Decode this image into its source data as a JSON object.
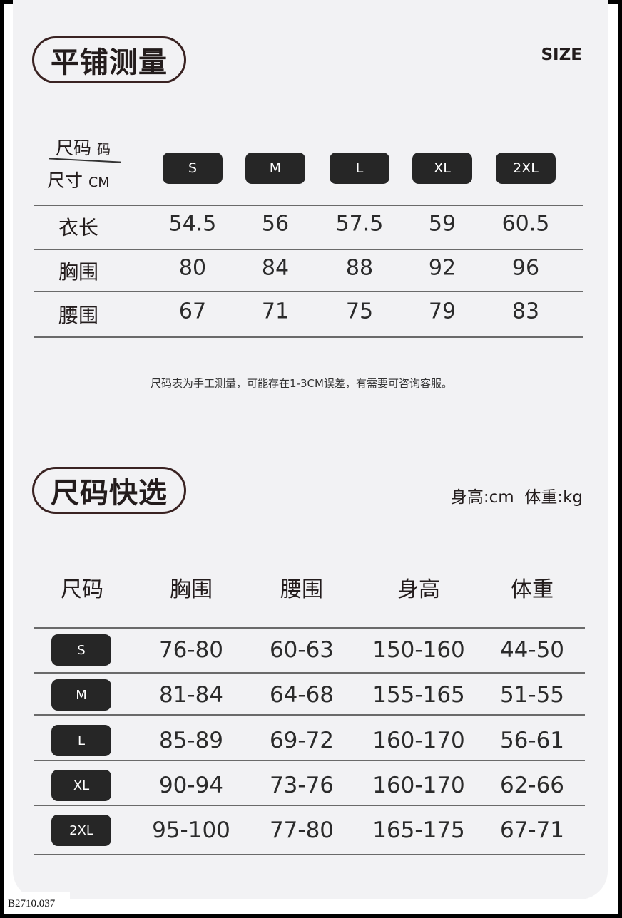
{
  "section1": {
    "title": "平铺测量",
    "size_label": "SIZE",
    "corner": {
      "top": "尺码",
      "top_unit": "码",
      "bottom": "尺寸",
      "bottom_unit": "CM"
    },
    "sizes": [
      "S",
      "M",
      "L",
      "XL",
      "2XL"
    ],
    "rows": [
      {
        "label": "衣长",
        "values": [
          "54.5",
          "56",
          "57.5",
          "59",
          "60.5"
        ]
      },
      {
        "label": "胸围",
        "values": [
          "80",
          "84",
          "88",
          "92",
          "96"
        ]
      },
      {
        "label": "腰围",
        "values": [
          "67",
          "71",
          "75",
          "79",
          "83"
        ]
      }
    ],
    "note": "尺码表为手工测量，可能存在1-3CM误差，有需要可咨询客服。"
  },
  "section2": {
    "title": "尺码快选",
    "units": "身高:cm  体重:kg",
    "headers": [
      "尺码",
      "胸围",
      "腰围",
      "身高",
      "体重"
    ],
    "rows": [
      {
        "size": "S",
        "values": [
          "76-80",
          "60-63",
          "150-160",
          "44-50"
        ]
      },
      {
        "size": "M",
        "values": [
          "81-84",
          "64-68",
          "155-165",
          "51-55"
        ]
      },
      {
        "size": "L",
        "values": [
          "85-89",
          "69-72",
          "160-170",
          "56-61"
        ]
      },
      {
        "size": "XL",
        "values": [
          "90-94",
          "73-76",
          "160-170",
          "62-66"
        ]
      },
      {
        "size": "2XL",
        "values": [
          "95-100",
          "77-80",
          "165-175",
          "67-71"
        ]
      }
    ]
  },
  "watermark": "B2710.037"
}
